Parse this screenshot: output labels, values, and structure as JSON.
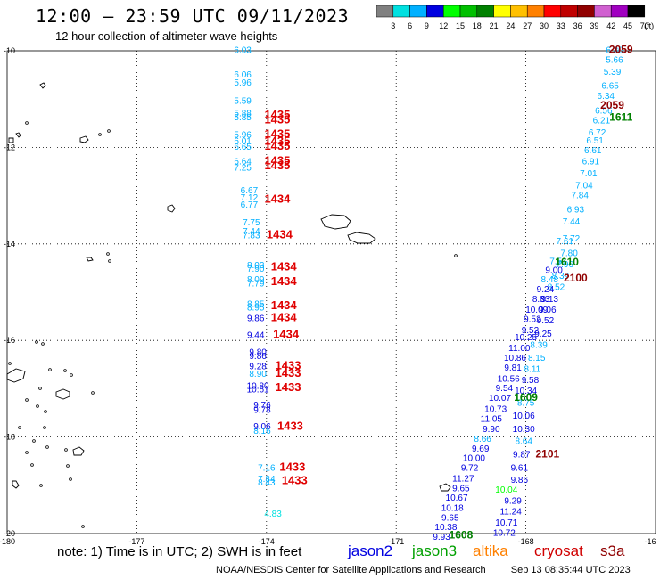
{
  "header": {
    "title": "12:00 — 23:59 UTC 09/11/2023",
    "subtitle": "12 hour collection of altimeter wave heights"
  },
  "color_scale": {
    "labels": [
      "3",
      "6",
      "9",
      "12",
      "15",
      "18",
      "21",
      "24",
      "27",
      "30",
      "33",
      "36",
      "39",
      "42",
      "45",
      "70",
      "(ft)"
    ],
    "colors": [
      "#808080",
      "#00e0e0",
      "#00b0ff",
      "#0000e0",
      "#00ff00",
      "#00c000",
      "#008000",
      "#ffff00",
      "#ffc000",
      "#ff8000",
      "#ff0000",
      "#c00000",
      "#900000",
      "#d060d0",
      "#a000c0",
      "#000000"
    ]
  },
  "axes": {
    "lat_labels": [
      "-10",
      "-12",
      "-14",
      "-16",
      "-18",
      "-20"
    ],
    "lon_labels": [
      "-180",
      "-177",
      "-174",
      "-171",
      "-168",
      "-16"
    ]
  },
  "tracks": {
    "west_values": [
      {
        "v": "6.03",
        "lon": -174.55,
        "lat": -10.05,
        "c": "#00b0ff"
      },
      {
        "v": "6.06",
        "lon": -174.55,
        "lat": -10.55,
        "c": "#00b0ff"
      },
      {
        "v": "5.96",
        "lon": -174.55,
        "lat": -10.72,
        "c": "#00b0ff"
      },
      {
        "v": "5.59",
        "lon": -174.55,
        "lat": -11.1,
        "c": "#00b0ff"
      },
      {
        "v": "5.88",
        "lon": -174.55,
        "lat": -11.36,
        "c": "#00b0ff"
      },
      {
        "v": "5.85",
        "lon": -174.55,
        "lat": -11.44,
        "c": "#00b0ff"
      },
      {
        "v": "5.96",
        "lon": -174.55,
        "lat": -11.8,
        "c": "#00b0ff"
      },
      {
        "v": "6.01",
        "lon": -174.55,
        "lat": -11.93,
        "c": "#00b0ff"
      },
      {
        "v": "6.65",
        "lon": -174.55,
        "lat": -12.05,
        "c": "#00b0ff"
      },
      {
        "v": "6.64",
        "lon": -174.55,
        "lat": -12.35,
        "c": "#00b0ff"
      },
      {
        "v": "7.25",
        "lon": -174.55,
        "lat": -12.48,
        "c": "#00b0ff"
      },
      {
        "v": "6.67",
        "lon": -174.4,
        "lat": -12.95,
        "c": "#00b0ff"
      },
      {
        "v": "7.12",
        "lon": -174.4,
        "lat": -13.1,
        "c": "#00b0ff"
      },
      {
        "v": "6.77",
        "lon": -174.4,
        "lat": -13.25,
        "c": "#00b0ff"
      },
      {
        "v": "7.75",
        "lon": -174.35,
        "lat": -13.62,
        "c": "#00b0ff"
      },
      {
        "v": "7.44",
        "lon": -174.35,
        "lat": -13.8,
        "c": "#00b0ff"
      },
      {
        "v": "7.83",
        "lon": -174.35,
        "lat": -13.88,
        "c": "#00b0ff"
      },
      {
        "v": "8.03",
        "lon": -174.25,
        "lat": -14.5,
        "c": "#00b0ff"
      },
      {
        "v": "7.90",
        "lon": -174.25,
        "lat": -14.58,
        "c": "#00b0ff"
      },
      {
        "v": "8.09",
        "lon": -174.25,
        "lat": -14.8,
        "c": "#00b0ff"
      },
      {
        "v": "7.79",
        "lon": -174.25,
        "lat": -14.88,
        "c": "#00b0ff"
      },
      {
        "v": "8.85",
        "lon": -174.25,
        "lat": -15.3,
        "c": "#00b0ff"
      },
      {
        "v": "8.95",
        "lon": -174.25,
        "lat": -15.38,
        "c": "#00b0ff"
      },
      {
        "v": "9.86",
        "lon": -174.25,
        "lat": -15.6,
        "c": "#0000e0"
      },
      {
        "v": "9.44",
        "lon": -174.25,
        "lat": -15.95,
        "c": "#0000e0"
      },
      {
        "v": "9.80",
        "lon": -174.2,
        "lat": -16.3,
        "c": "#0000e0"
      },
      {
        "v": "9.86",
        "lon": -174.2,
        "lat": -16.38,
        "c": "#0000e0"
      },
      {
        "v": "9.28",
        "lon": -174.2,
        "lat": -16.6,
        "c": "#0000e0"
      },
      {
        "v": "8.90",
        "lon": -174.2,
        "lat": -16.75,
        "c": "#00b0ff"
      },
      {
        "v": "10.80",
        "lon": -174.2,
        "lat": -17.0,
        "c": "#0000e0"
      },
      {
        "v": "10.61",
        "lon": -174.2,
        "lat": -17.08,
        "c": "#0000e0"
      },
      {
        "v": "9.76",
        "lon": -174.1,
        "lat": -17.4,
        "c": "#0000e0"
      },
      {
        "v": "9.78",
        "lon": -174.1,
        "lat": -17.5,
        "c": "#0000e0"
      },
      {
        "v": "9.06",
        "lon": -174.1,
        "lat": -17.84,
        "c": "#0000e0"
      },
      {
        "v": "8.16",
        "lon": -174.1,
        "lat": -17.93,
        "c": "#00b0ff"
      },
      {
        "v": "7.16",
        "lon": -174.0,
        "lat": -18.7,
        "c": "#00b0ff"
      },
      {
        "v": "7.84",
        "lon": -174.0,
        "lat": -18.93,
        "c": "#00b0ff"
      },
      {
        "v": "8.43",
        "lon": -174.0,
        "lat": -19.0,
        "c": "#00b0ff"
      },
      {
        "v": "4.83",
        "lon": -173.85,
        "lat": -19.65,
        "c": "#00e0e0"
      }
    ],
    "west_pass_labels": [
      {
        "v": "1435",
        "lon": -173.75,
        "lat": -11.4
      },
      {
        "v": "1435",
        "lon": -173.75,
        "lat": -11.5
      },
      {
        "v": "1435",
        "lon": -173.75,
        "lat": -11.8
      },
      {
        "v": "1435",
        "lon": -173.75,
        "lat": -11.95
      },
      {
        "v": "1435",
        "lon": -173.75,
        "lat": -12.05
      },
      {
        "v": "1435",
        "lon": -173.75,
        "lat": -12.35
      },
      {
        "v": "1435",
        "lon": -173.75,
        "lat": -12.45
      },
      {
        "v": "1434",
        "lon": -173.75,
        "lat": -13.15
      },
      {
        "v": "1434",
        "lon": -173.7,
        "lat": -13.88
      },
      {
        "v": "1434",
        "lon": -173.6,
        "lat": -14.55
      },
      {
        "v": "1434",
        "lon": -173.6,
        "lat": -14.85
      },
      {
        "v": "1434",
        "lon": -173.6,
        "lat": -15.35
      },
      {
        "v": "1434",
        "lon": -173.6,
        "lat": -15.6
      },
      {
        "v": "1434",
        "lon": -173.55,
        "lat": -15.95
      },
      {
        "v": "1433",
        "lon": -173.5,
        "lat": -16.6
      },
      {
        "v": "1433",
        "lon": -173.5,
        "lat": -16.75
      },
      {
        "v": "1433",
        "lon": -173.5,
        "lat": -17.05
      },
      {
        "v": "1433",
        "lon": -173.45,
        "lat": -17.85
      },
      {
        "v": "1433",
        "lon": -173.4,
        "lat": -18.7
      },
      {
        "v": "1433",
        "lon": -173.35,
        "lat": -18.98
      }
    ],
    "east_values": [
      {
        "v": "6.30",
        "lon": -165.95,
        "lat": -10.05,
        "c": "#00b0ff"
      },
      {
        "v": "5.66",
        "lon": -165.95,
        "lat": -10.25,
        "c": "#00b0ff"
      },
      {
        "v": "5.39",
        "lon": -166.0,
        "lat": -10.5,
        "c": "#00b0ff"
      },
      {
        "v": "6.65",
        "lon": -166.05,
        "lat": -10.78,
        "c": "#00b0ff"
      },
      {
        "v": "6.34",
        "lon": -166.15,
        "lat": -11.0,
        "c": "#00b0ff"
      },
      {
        "v": "6.56",
        "lon": -166.2,
        "lat": -11.3,
        "c": "#00b0ff"
      },
      {
        "v": "6.21",
        "lon": -166.25,
        "lat": -11.5,
        "c": "#00b0ff"
      },
      {
        "v": "6.72",
        "lon": -166.35,
        "lat": -11.75,
        "c": "#00b0ff"
      },
      {
        "v": "6.51",
        "lon": -166.4,
        "lat": -11.92,
        "c": "#00b0ff"
      },
      {
        "v": "6.61",
        "lon": -166.45,
        "lat": -12.12,
        "c": "#00b0ff"
      },
      {
        "v": "6.91",
        "lon": -166.5,
        "lat": -12.35,
        "c": "#00b0ff"
      },
      {
        "v": "7.01",
        "lon": -166.55,
        "lat": -12.6,
        "c": "#00b0ff"
      },
      {
        "v": "7.04",
        "lon": -166.65,
        "lat": -12.85,
        "c": "#00b0ff"
      },
      {
        "v": "7.84",
        "lon": -166.75,
        "lat": -13.05,
        "c": "#00b0ff"
      },
      {
        "v": "6.93",
        "lon": -166.85,
        "lat": -13.35,
        "c": "#00b0ff"
      },
      {
        "v": "7.44",
        "lon": -166.95,
        "lat": -13.6,
        "c": "#00b0ff"
      },
      {
        "v": "7.72",
        "lon": -166.95,
        "lat": -13.95,
        "c": "#00b0ff"
      },
      {
        "v": "7.61",
        "lon": -167.1,
        "lat": -14.0,
        "c": "#00b0ff"
      },
      {
        "v": "7.80",
        "lon": -167.0,
        "lat": -14.25,
        "c": "#00b0ff"
      },
      {
        "v": "7.51",
        "lon": -167.25,
        "lat": -14.42,
        "c": "#00b0ff"
      },
      {
        "v": "7.96",
        "lon": -167.1,
        "lat": -14.48,
        "c": "#00b0ff"
      },
      {
        "v": "9.00",
        "lon": -167.35,
        "lat": -14.6,
        "c": "#0000e0"
      },
      {
        "v": "8.39",
        "lon": -167.2,
        "lat": -14.72,
        "c": "#00b0ff"
      },
      {
        "v": "8.48",
        "lon": -167.45,
        "lat": -14.8,
        "c": "#00b0ff"
      },
      {
        "v": "8.52",
        "lon": -167.3,
        "lat": -14.95,
        "c": "#00b0ff"
      },
      {
        "v": "9.24",
        "lon": -167.55,
        "lat": -15.0,
        "c": "#0000e0"
      },
      {
        "v": "8.83",
        "lon": -167.65,
        "lat": -15.2,
        "c": "#0000e0"
      },
      {
        "v": "9.13",
        "lon": -167.45,
        "lat": -15.2,
        "c": "#0000e0"
      },
      {
        "v": "10.09",
        "lon": -167.75,
        "lat": -15.42,
        "c": "#0000e0"
      },
      {
        "v": "9.06",
        "lon": -167.5,
        "lat": -15.42,
        "c": "#0000e0"
      },
      {
        "v": "9.52",
        "lon": -167.85,
        "lat": -15.62,
        "c": "#0000e0"
      },
      {
        "v": "9.52",
        "lon": -167.55,
        "lat": -15.65,
        "c": "#0000e0"
      },
      {
        "v": "9.52",
        "lon": -167.9,
        "lat": -15.85,
        "c": "#0000e0"
      },
      {
        "v": "9.25",
        "lon": -167.6,
        "lat": -15.92,
        "c": "#0000e0"
      },
      {
        "v": "10.25",
        "lon": -168.0,
        "lat": -16.0,
        "c": "#0000e0"
      },
      {
        "v": "8.39",
        "lon": -167.7,
        "lat": -16.15,
        "c": "#00b0ff"
      },
      {
        "v": "11.00",
        "lon": -168.15,
        "lat": -16.22,
        "c": "#0000e0"
      },
      {
        "v": "8.15",
        "lon": -167.75,
        "lat": -16.42,
        "c": "#00b0ff"
      },
      {
        "v": "10.86",
        "lon": -168.25,
        "lat": -16.42,
        "c": "#0000e0"
      },
      {
        "v": "9.81",
        "lon": -168.3,
        "lat": -16.62,
        "c": "#0000e0"
      },
      {
        "v": "8.11",
        "lon": -167.85,
        "lat": -16.65,
        "c": "#00b0ff"
      },
      {
        "v": "10.56",
        "lon": -168.4,
        "lat": -16.85,
        "c": "#0000e0"
      },
      {
        "v": "9.58",
        "lon": -167.9,
        "lat": -16.88,
        "c": "#0000e0"
      },
      {
        "v": "9.54",
        "lon": -168.5,
        "lat": -17.05,
        "c": "#0000e0"
      },
      {
        "v": "10.34",
        "lon": -168.0,
        "lat": -17.1,
        "c": "#0000e0"
      },
      {
        "v": "10.07",
        "lon": -168.6,
        "lat": -17.25,
        "c": "#0000e0"
      },
      {
        "v": "8.75",
        "lon": -168.0,
        "lat": -17.35,
        "c": "#00b0ff"
      },
      {
        "v": "10.73",
        "lon": -168.7,
        "lat": -17.48,
        "c": "#0000e0"
      },
      {
        "v": "10.06",
        "lon": -168.05,
        "lat": -17.62,
        "c": "#0000e0"
      },
      {
        "v": "11.05",
        "lon": -168.8,
        "lat": -17.68,
        "c": "#0000e0"
      },
      {
        "v": "9.90",
        "lon": -168.8,
        "lat": -17.9,
        "c": "#0000e0"
      },
      {
        "v": "10.30",
        "lon": -168.05,
        "lat": -17.9,
        "c": "#0000e0"
      },
      {
        "v": "8.66",
        "lon": -169.0,
        "lat": -18.1,
        "c": "#00b0ff"
      },
      {
        "v": "8.64",
        "lon": -168.05,
        "lat": -18.15,
        "c": "#00b0ff"
      },
      {
        "v": "9.69",
        "lon": -169.05,
        "lat": -18.3,
        "c": "#0000e0"
      },
      {
        "v": "9.87",
        "lon": -168.1,
        "lat": -18.42,
        "c": "#0000e0"
      },
      {
        "v": "10.00",
        "lon": -169.2,
        "lat": -18.5,
        "c": "#0000e0"
      },
      {
        "v": "9.61",
        "lon": -168.15,
        "lat": -18.7,
        "c": "#0000e0"
      },
      {
        "v": "9.72",
        "lon": -169.3,
        "lat": -18.7,
        "c": "#0000e0"
      },
      {
        "v": "11.27",
        "lon": -169.45,
        "lat": -18.92,
        "c": "#0000e0"
      },
      {
        "v": "9.86",
        "lon": -168.15,
        "lat": -18.95,
        "c": "#0000e0"
      },
      {
        "v": "9.65",
        "lon": -169.5,
        "lat": -19.12,
        "c": "#0000e0"
      },
      {
        "v": "10.04",
        "lon": -168.45,
        "lat": -19.15,
        "c": "#00ff00"
      },
      {
        "v": "10.67",
        "lon": -169.6,
        "lat": -19.32,
        "c": "#0000e0"
      },
      {
        "v": "9.29",
        "lon": -168.3,
        "lat": -19.38,
        "c": "#0000e0"
      },
      {
        "v": "10.18",
        "lon": -169.7,
        "lat": -19.53,
        "c": "#0000e0"
      },
      {
        "v": "11.24",
        "lon": -168.35,
        "lat": -19.6,
        "c": "#0000e0"
      },
      {
        "v": "9.65",
        "lon": -169.75,
        "lat": -19.73,
        "c": "#0000e0"
      },
      {
        "v": "10.71",
        "lon": -168.45,
        "lat": -19.83,
        "c": "#0000e0"
      },
      {
        "v": "10.38",
        "lon": -169.85,
        "lat": -19.93,
        "c": "#0000e0"
      },
      {
        "v": "9.93",
        "lon": -169.95,
        "lat": -20.13,
        "c": "#0000e0"
      },
      {
        "v": "10.72",
        "lon": -168.5,
        "lat": -20.05,
        "c": "#0000e0"
      }
    ],
    "east_pass_labels": [
      {
        "v": "2059",
        "lon": -165.8,
        "lat": -10.05,
        "c": "#900000"
      },
      {
        "v": "2059",
        "lon": -166.0,
        "lat": -11.2,
        "c": "#900000"
      },
      {
        "v": "1611",
        "lon": -165.8,
        "lat": -11.45,
        "c": "#008000"
      },
      {
        "v": "1610",
        "lon": -167.05,
        "lat": -14.45,
        "c": "#008000"
      },
      {
        "v": "2100",
        "lon": -166.85,
        "lat": -14.78,
        "c": "#900000"
      },
      {
        "v": "1609",
        "lon": -168.0,
        "lat": -17.25,
        "c": "#008000"
      },
      {
        "v": "2101",
        "lon": -167.5,
        "lat": -18.42,
        "c": "#900000"
      },
      {
        "v": "1608",
        "lon": -169.5,
        "lat": -20.1,
        "c": "#008000"
      }
    ]
  },
  "footer": {
    "note": "note: 1) Time is in UTC; 2) SWH is in feet",
    "satellites": [
      {
        "name": "jason2",
        "color": "#0000e0"
      },
      {
        "name": "jason3",
        "color": "#00a000"
      },
      {
        "name": "altika",
        "color": "#ff8000"
      },
      {
        "name": "cryosat",
        "color": "#d00000"
      },
      {
        "name": "s3a",
        "color": "#900000"
      }
    ],
    "credit": "NOAA/NESDIS Center for Satellite Applications and Research",
    "timestamp": "Sep 13 08:35:44 UTC 2023"
  }
}
